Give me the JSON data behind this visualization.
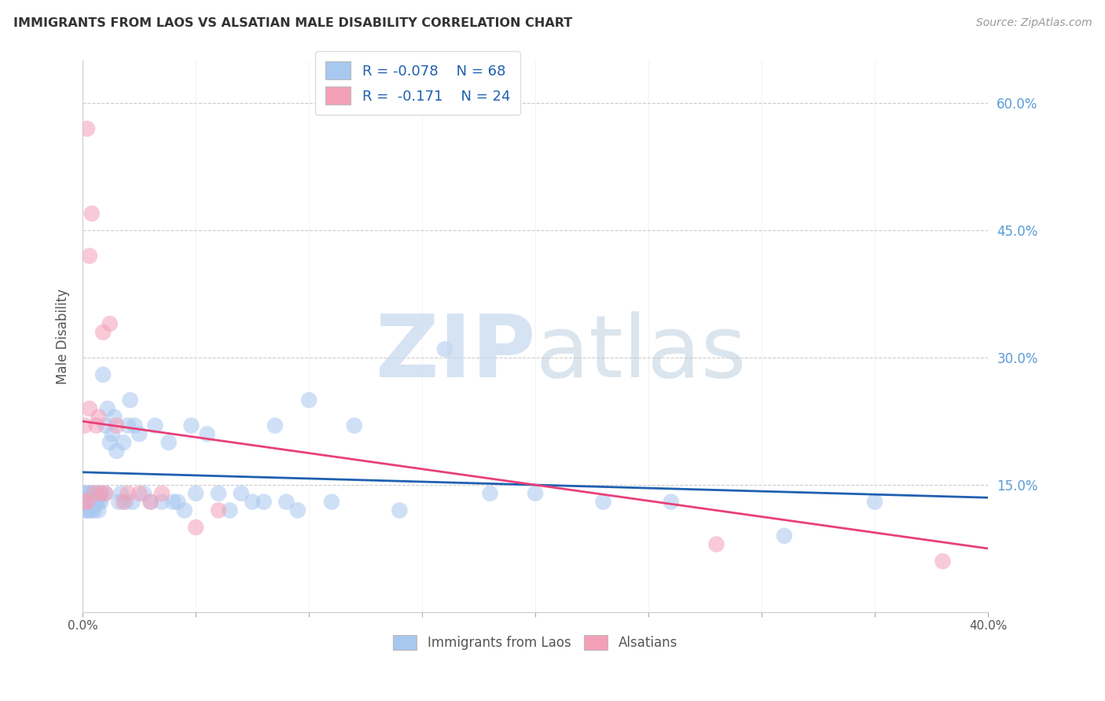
{
  "title": "IMMIGRANTS FROM LAOS VS ALSATIAN MALE DISABILITY CORRELATION CHART",
  "source": "Source: ZipAtlas.com",
  "ylabel": "Male Disability",
  "legend_label1": "Immigrants from Laos",
  "legend_label2": "Alsatians",
  "r1": -0.078,
  "n1": 68,
  "r2": -0.171,
  "n2": 24,
  "color1": "#A8C8F0",
  "color2": "#F4A0B8",
  "line_color1": "#2060B0",
  "line_color2": "#E8407A",
  "x_min": 0.0,
  "x_max": 0.4,
  "y_min": 0.0,
  "y_max": 0.65,
  "y_ticks": [
    0.0,
    0.15,
    0.3,
    0.45,
    0.6
  ],
  "y_ticks_right": [
    0.15,
    0.3,
    0.45,
    0.6
  ],
  "watermark_zip_color": "#C5D8EE",
  "watermark_atlas_color": "#B8CCDE",
  "blue_scatter_x": [
    0.001,
    0.001,
    0.001,
    0.002,
    0.002,
    0.002,
    0.003,
    0.003,
    0.003,
    0.004,
    0.004,
    0.004,
    0.005,
    0.005,
    0.005,
    0.006,
    0.006,
    0.007,
    0.007,
    0.008,
    0.008,
    0.009,
    0.01,
    0.01,
    0.011,
    0.012,
    0.013,
    0.014,
    0.015,
    0.016,
    0.017,
    0.018,
    0.019,
    0.02,
    0.021,
    0.022,
    0.023,
    0.025,
    0.027,
    0.03,
    0.032,
    0.035,
    0.038,
    0.04,
    0.042,
    0.045,
    0.048,
    0.05,
    0.055,
    0.06,
    0.065,
    0.07,
    0.075,
    0.08,
    0.085,
    0.09,
    0.095,
    0.1,
    0.11,
    0.12,
    0.14,
    0.16,
    0.18,
    0.2,
    0.23,
    0.26,
    0.31,
    0.35
  ],
  "blue_scatter_y": [
    0.14,
    0.13,
    0.12,
    0.13,
    0.14,
    0.12,
    0.13,
    0.14,
    0.12,
    0.14,
    0.13,
    0.12,
    0.13,
    0.14,
    0.12,
    0.13,
    0.14,
    0.13,
    0.12,
    0.14,
    0.13,
    0.28,
    0.14,
    0.22,
    0.24,
    0.2,
    0.21,
    0.23,
    0.19,
    0.13,
    0.14,
    0.2,
    0.13,
    0.22,
    0.25,
    0.13,
    0.22,
    0.21,
    0.14,
    0.13,
    0.22,
    0.13,
    0.2,
    0.13,
    0.13,
    0.12,
    0.22,
    0.14,
    0.21,
    0.14,
    0.12,
    0.14,
    0.13,
    0.13,
    0.22,
    0.13,
    0.12,
    0.25,
    0.13,
    0.22,
    0.12,
    0.31,
    0.14,
    0.14,
    0.13,
    0.13,
    0.09,
    0.13
  ],
  "pink_scatter_x": [
    0.001,
    0.001,
    0.002,
    0.002,
    0.003,
    0.003,
    0.004,
    0.005,
    0.006,
    0.007,
    0.008,
    0.009,
    0.01,
    0.012,
    0.015,
    0.018,
    0.02,
    0.025,
    0.03,
    0.035,
    0.05,
    0.06,
    0.28,
    0.38
  ],
  "pink_scatter_y": [
    0.13,
    0.22,
    0.57,
    0.13,
    0.42,
    0.24,
    0.47,
    0.14,
    0.22,
    0.23,
    0.14,
    0.33,
    0.14,
    0.34,
    0.22,
    0.13,
    0.14,
    0.14,
    0.13,
    0.14,
    0.1,
    0.12,
    0.08,
    0.06
  ],
  "blue_line_x0": 0.0,
  "blue_line_x1": 0.4,
  "blue_line_y0": 0.165,
  "blue_line_y1": 0.135,
  "pink_line_x0": 0.0,
  "pink_line_x1": 0.4,
  "pink_line_y0": 0.225,
  "pink_line_y1": 0.075
}
